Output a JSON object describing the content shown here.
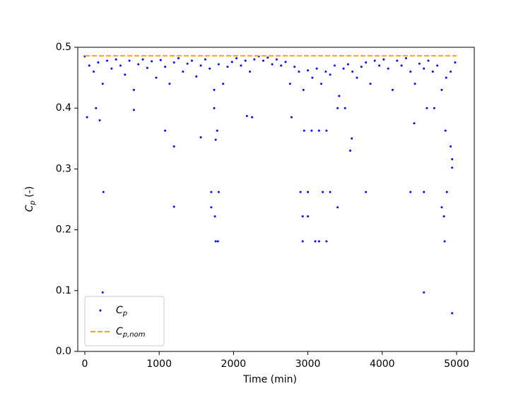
{
  "chart_data": {
    "type": "scatter",
    "xlabel": "Time (min)",
    "ylabel": "C_p (-)",
    "xlim": [
      -95,
      5238
    ],
    "ylim": [
      0,
      0.5
    ],
    "xticks": [
      0,
      1000,
      2000,
      3000,
      4000,
      5000
    ],
    "yticks": [
      {
        "value": 0,
        "label": "0.0"
      },
      0.1,
      0.2,
      0.3,
      0.4,
      0.5
    ],
    "legend": "lower left",
    "series": [
      {
        "name": "C_p",
        "type": "scatter",
        "color": "#0000ff",
        "x": [
          0,
          60,
          120,
          180,
          240,
          300,
          360,
          420,
          480,
          540,
          600,
          660,
          720,
          780,
          840,
          900,
          960,
          1020,
          1080,
          1140,
          1200,
          1260,
          1320,
          1380,
          1440,
          1500,
          1560,
          1620,
          1680,
          1740,
          1800,
          1860,
          1920,
          1980,
          2040,
          2100,
          2160,
          2220,
          2280,
          2340,
          2400,
          2460,
          2520,
          2580,
          2640,
          2700,
          2760,
          2820,
          2880,
          2940,
          3000,
          3060,
          3120,
          3180,
          3240,
          3300,
          3360,
          3420,
          3480,
          3540,
          3600,
          3660,
          3720,
          3780,
          3840,
          3900,
          3960,
          4020,
          4080,
          4140,
          4200,
          4260,
          4320,
          4380,
          4440,
          4500,
          4560,
          4620,
          4680,
          4740,
          4800,
          4860,
          4920,
          4980,
          240,
          250,
          1200,
          1200,
          1080,
          1700,
          1700,
          1750,
          1760,
          1790,
          1800,
          1760,
          1780,
          2900,
          2930,
          2930,
          3000,
          3000,
          3100,
          3150,
          3200,
          3250,
          3300,
          3400,
          3780,
          4380,
          4560,
          4560,
          4800,
          4830,
          4840,
          4870,
          4940,
          4940,
          4940,
          4920,
          3570,
          3590,
          30,
          150,
          200,
          1560,
          2180,
          2250,
          2780,
          2950,
          3050,
          3150,
          3250,
          3400,
          3500,
          4600,
          4700,
          4850,
          4430,
          660,
          1740
        ],
        "values": [
          0.485,
          0.47,
          0.46,
          0.475,
          0.44,
          0.478,
          0.465,
          0.48,
          0.47,
          0.455,
          0.478,
          0.43,
          0.472,
          0.48,
          0.466,
          0.477,
          0.45,
          0.479,
          0.468,
          0.44,
          0.475,
          0.482,
          0.46,
          0.473,
          0.478,
          0.452,
          0.47,
          0.48,
          0.465,
          0.43,
          0.472,
          0.44,
          0.468,
          0.476,
          0.482,
          0.47,
          0.478,
          0.46,
          0.48,
          0.485,
          0.478,
          0.483,
          0.472,
          0.48,
          0.47,
          0.476,
          0.44,
          0.468,
          0.46,
          0.43,
          0.462,
          0.45,
          0.465,
          0.44,
          0.46,
          0.455,
          0.47,
          0.42,
          0.465,
          0.472,
          0.46,
          0.45,
          0.468,
          0.475,
          0.44,
          0.478,
          0.47,
          0.48,
          0.465,
          0.43,
          0.478,
          0.47,
          0.482,
          0.46,
          0.44,
          0.473,
          0.465,
          0.478,
          0.46,
          0.47,
          0.43,
          0.45,
          0.46,
          0.475,
          0.097,
          0.262,
          0.238,
          0.337,
          0.363,
          0.262,
          0.237,
          0.222,
          0.181,
          0.181,
          0.262,
          0.348,
          0.363,
          0.262,
          0.222,
          0.181,
          0.262,
          0.222,
          0.181,
          0.181,
          0.262,
          0.181,
          0.262,
          0.237,
          0.262,
          0.262,
          0.097,
          0.262,
          0.237,
          0.222,
          0.181,
          0.262,
          0.063,
          0.302,
          0.316,
          0.337,
          0.33,
          0.35,
          0.385,
          0.4,
          0.38,
          0.352,
          0.387,
          0.385,
          0.385,
          0.363,
          0.363,
          0.363,
          0.363,
          0.4,
          0.4,
          0.4,
          0.4,
          0.363,
          0.375,
          0.397,
          0.4
        ]
      },
      {
        "name": "C_p,nom",
        "type": "line",
        "color": "#ffa500",
        "dashed": true,
        "x": [
          0,
          5000
        ],
        "values": [
          0.486,
          0.486
        ]
      }
    ]
  }
}
